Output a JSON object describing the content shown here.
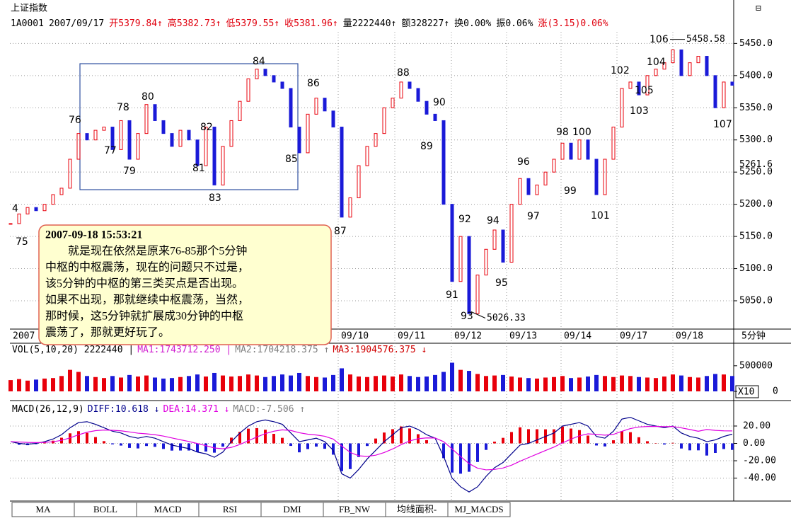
{
  "header": {
    "title": "上证指数",
    "items": [
      {
        "text": "1A0001",
        "color": "#000000"
      },
      {
        "text": "2007/09/17",
        "color": "#000000"
      },
      {
        "text": "开5379.84↑",
        "color": "#e0000e"
      },
      {
        "text": "高5382.73↑",
        "color": "#e0000e"
      },
      {
        "text": "低5379.55↑",
        "color": "#e0000e"
      },
      {
        "text": "收5381.96↑",
        "color": "#e0000e"
      },
      {
        "text": "量2222440↑",
        "color": "#000000"
      },
      {
        "text": "额328227↑",
        "color": "#000000"
      },
      {
        "text": "换0.00%",
        "color": "#000000"
      },
      {
        "text": "振0.06%",
        "color": "#000000"
      },
      {
        "text": "涨(3.15)0.06%",
        "color": "#e0000e"
      }
    ]
  },
  "chart_data": [
    {
      "type": "candlestick",
      "up_color": "#e8000b",
      "down_color": "#1a1ad8",
      "values": [
        5170,
        5185,
        5195,
        5190,
        5200,
        5215,
        5225,
        5270,
        5310,
        5300,
        5315,
        5320,
        5285,
        5330,
        5270,
        5310,
        5355,
        5330,
        5310,
        5290,
        5315,
        5300,
        5260,
        5320,
        5230,
        5290,
        5330,
        5360,
        5395,
        5410,
        5400,
        5390,
        5380,
        5320,
        5280,
        5340,
        5365,
        5345,
        5320,
        5180,
        5210,
        5260,
        5290,
        5310,
        5350,
        5365,
        5390,
        5380,
        5360,
        5340,
        5330,
        5200,
        5080,
        5150,
        5030,
        5090,
        5130,
        5160,
        5110,
        5200,
        5240,
        5215,
        5230,
        5250,
        5270,
        5295,
        5270,
        5300,
        5270,
        5215,
        5270,
        5320,
        5380,
        5390,
        5370,
        5400,
        5410,
        5420,
        5440,
        5400,
        5420,
        5430,
        5400,
        5350,
        5390,
        5385
      ],
      "ylim": [
        5006,
        5468
      ],
      "yticks": [
        {
          "value": 5050,
          "label": "5050.0"
        },
        {
          "value": 5100,
          "label": "5100.0"
        },
        {
          "value": 5150,
          "label": "5150.0"
        },
        {
          "value": 5200,
          "label": "5200.0"
        },
        {
          "value": 5250,
          "label": "5250.0"
        },
        {
          "value": 5300,
          "label": "5300.0"
        },
        {
          "value": 5350,
          "label": "5350.0"
        },
        {
          "value": 5400,
          "label": "5400.0"
        },
        {
          "value": 5450,
          "label": "5450.0"
        }
      ],
      "grid": true,
      "x_labels": [
        "2007",
        "09/10",
        "09/11",
        "09/12",
        "09/13",
        "09/14",
        "09/17",
        "09/18"
      ],
      "period_label": "5分钟",
      "high_label": 5458.58,
      "low_label": 5026.33,
      "cursor_price": 5261.6,
      "wave_labels": [
        "4",
        "75",
        "76",
        "77",
        "78",
        "79",
        "80",
        "81",
        "82",
        "83",
        "84",
        "85",
        "86",
        "87",
        "88",
        "89",
        "90",
        "91",
        "92",
        "93",
        "94",
        "95",
        "96",
        "97",
        "98",
        "99",
        "100",
        "101",
        "102",
        "103",
        "104",
        "105",
        "106",
        "107"
      ],
      "note": {
        "time": "2007-09-18 15:53:21",
        "lines": [
          "　　就是现在依然是原来76-85那个5分钟",
          "中枢的中枢震荡，现在的问题只不过是，",
          "该5分钟的中枢的第三类买点是否出现。",
          "如果不出现，那就继续中枢震荡，当然，",
          "那时候，这5分钟就扩展成30分钟的中枢",
          "震荡了，那就更好玩了。"
        ]
      }
    },
    {
      "type": "bar",
      "title_items": [
        {
          "text": "VOL(5,10,20) 2222440 |",
          "color": "#000000"
        },
        {
          "text": "MA1:1743712.250 |",
          "color": "#d020d0"
        },
        {
          "text": "MA2:1704218.375 ↑",
          "color": "#808080"
        },
        {
          "text": "MA3:1904576.375 ↓",
          "color": "#d00000"
        }
      ],
      "values": [
        220000,
        240000,
        210000,
        230000,
        250000,
        260000,
        300000,
        420000,
        380000,
        300000,
        280000,
        260000,
        300000,
        270000,
        320000,
        290000,
        310000,
        270000,
        250000,
        260000,
        280000,
        300000,
        330000,
        290000,
        360000,
        310000,
        290000,
        300000,
        330000,
        310000,
        280000,
        300000,
        330000,
        310000,
        360000,
        300000,
        280000,
        270000,
        320000,
        450000,
        330000,
        290000,
        280000,
        300000,
        310000,
        290000,
        330000,
        300000,
        280000,
        290000,
        320000,
        380000,
        560000,
        420000,
        400000,
        340000,
        300000,
        310000,
        320000,
        290000,
        270000,
        260000,
        250000,
        270000,
        280000,
        300000,
        260000,
        270000,
        290000,
        320000,
        300000,
        280000,
        310000,
        300000,
        280000,
        270000,
        260000,
        290000,
        330000,
        310000,
        280000,
        270000,
        300000,
        340000,
        330000,
        300000
      ],
      "ylim": [
        0,
        940000
      ],
      "yticks": [
        0,
        500000
      ],
      "scale_label": "X10"
    },
    {
      "type": "macd",
      "title_items": [
        {
          "text": "MACD(26,12,9)",
          "color": "#000000"
        },
        {
          "text": "DIFF:10.618 ↓",
          "color": "#00008b"
        },
        {
          "text": "DEA:14.371 ↓",
          "color": "#e000e0"
        },
        {
          "text": "MACD:-7.506 ↑",
          "color": "#808080"
        }
      ],
      "series": [
        {
          "name": "DIFF",
          "color": "#00008b",
          "values": [
            2,
            0,
            -1,
            0,
            2,
            5,
            10,
            18,
            24,
            25,
            22,
            18,
            14,
            12,
            8,
            6,
            8,
            6,
            2,
            -2,
            -4,
            -6,
            -10,
            -12,
            -16,
            -10,
            2,
            12,
            20,
            25,
            27,
            25,
            22,
            12,
            2,
            4,
            6,
            2,
            -8,
            -35,
            -40,
            -30,
            -18,
            -8,
            2,
            10,
            18,
            20,
            16,
            10,
            6,
            -15,
            -40,
            -50,
            -56,
            -50,
            -38,
            -28,
            -22,
            -12,
            -2,
            0,
            4,
            8,
            12,
            20,
            22,
            24,
            20,
            8,
            6,
            14,
            28,
            30,
            26,
            22,
            20,
            18,
            20,
            12,
            8,
            6,
            2,
            4,
            8,
            10.6
          ]
        },
        {
          "name": "DEA",
          "color": "#e000e0",
          "values": [
            2,
            1.6,
            1.1,
            0.9,
            1.1,
            1.9,
            3.5,
            6.4,
            9.9,
            12.9,
            14.7,
            15.4,
            15.1,
            14.5,
            13.2,
            11.8,
            11,
            10,
            8.4,
            6.3,
            4.2,
            2.2,
            -0.2,
            -2.6,
            -5.3,
            -6.2,
            -4.6,
            -1.3,
            3,
            7.4,
            11.3,
            14,
            15.6,
            14.9,
            12.3,
            10.6,
            9.7,
            8.2,
            5,
            -3,
            -10.4,
            -14.3,
            -15,
            -13.6,
            -10.5,
            -6.4,
            -1.5,
            2.8,
            5.4,
            6.3,
            6.2,
            2,
            -6.4,
            -15.1,
            -23.3,
            -28.6,
            -30.5,
            -30,
            -28.4,
            -25.1,
            -20.5,
            -16.4,
            -12.3,
            -8.2,
            -4.2,
            0.6,
            4.9,
            8.7,
            11,
            10.4,
            9.5,
            10.4,
            13.9,
            17.1,
            18.9,
            19.5,
            19.6,
            19.3,
            19.4,
            17.9,
            16,
            14,
            16,
            15,
            14.5,
            14.371
          ]
        },
        {
          "name": "MACD",
          "up_color": "#e8000b",
          "down_color": "#1a1ad8",
          "values": [
            0,
            -1.6,
            -2.1,
            -0.9,
            0.9,
            3.1,
            6.5,
            11.6,
            14.1,
            12.1,
            7.3,
            2.6,
            -1.1,
            -2.5,
            -5.2,
            -5.8,
            -3,
            -4,
            -6.4,
            -8.3,
            -8.2,
            -8.2,
            -9.8,
            -9.4,
            -10.7,
            -3.8,
            6.6,
            13.3,
            17,
            17.6,
            15.7,
            11,
            6.4,
            -2.9,
            -10.3,
            -6.6,
            -3.7,
            -6.2,
            -13,
            -32,
            -29.6,
            -15.7,
            -3,
            5.6,
            12.5,
            16.4,
            19.5,
            17.2,
            10.6,
            3.7,
            -0.2,
            -17,
            -33.6,
            -34.9,
            -32.7,
            -21.4,
            -7.5,
            2,
            6.4,
            13.1,
            18.5,
            16.4,
            16.3,
            16.2,
            16.2,
            19.4,
            17.1,
            15.3,
            9,
            -2.4,
            -3.5,
            3.6,
            14.1,
            12.9,
            7.1,
            2.5,
            0.4,
            -1.3,
            0.6,
            -5.9,
            -8,
            -8,
            -14,
            -11,
            -6.5,
            -7.5
          ]
        }
      ],
      "ylim": [
        -64,
        42
      ],
      "yticks": [
        {
          "value": 20,
          "label": "20.00"
        },
        {
          "value": 0,
          "label": "0.00"
        },
        {
          "value": -20,
          "label": "-20.00"
        },
        {
          "value": -40,
          "label": "-40.00"
        }
      ]
    }
  ],
  "tabs": [
    "MA",
    "BOLL",
    "MACD",
    "RSI",
    "DMI",
    "FB_NW",
    "均线面积-",
    "MJ_MACDS"
  ]
}
